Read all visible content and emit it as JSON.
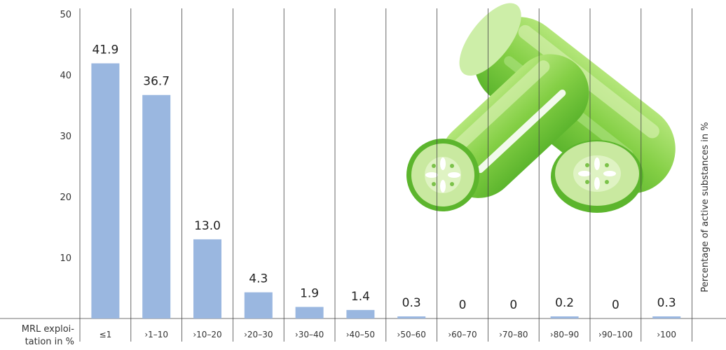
{
  "chart_data": {
    "type": "bar",
    "categories": [
      "≤1",
      "›1–10",
      "›10–20",
      "›20–30",
      "›30–40",
      "›40–50",
      "›50–60",
      "›60–70",
      "›70–80",
      "›80–90",
      "›90–100",
      "›100"
    ],
    "values": [
      41.9,
      36.7,
      13.0,
      4.3,
      1.9,
      1.4,
      0.3,
      0,
      0,
      0.2,
      0,
      0.3
    ],
    "value_labels": [
      "41.9",
      "36.7",
      "13.0",
      "4.3",
      "1.9",
      "1.4",
      "0.3",
      "0",
      "0",
      "0.2",
      "0",
      "0.3"
    ],
    "xlabel": "MRL exploitation in %",
    "xlabel_lines": [
      "MRL exploi-",
      "tation in %"
    ],
    "ylabel": "Percentage of active substances in %",
    "ylim": [
      0,
      50
    ],
    "yticks": [
      10,
      20,
      30,
      40,
      50
    ],
    "grid": "vertical",
    "bar_color": "#9ab7e0",
    "illustration": "cucumber-illustration"
  }
}
